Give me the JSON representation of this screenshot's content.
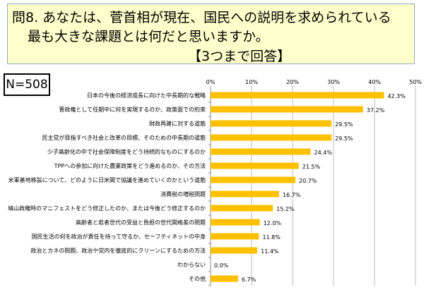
{
  "title": {
    "line1": "問8. あなたは、菅首相が現在、国民への説明を求められている",
    "line2": "最も大きな課題とは何だと思いますか。",
    "line3": "【3つまで回答】"
  },
  "sample_size": "N=508",
  "chart_data": {
    "type": "bar",
    "orientation": "horizontal",
    "categories": [
      "日本の今後の経済成長に向けた中長期的な戦略",
      "菅政権として任期中に何を実現するのか、政策面での約束",
      "財政再建に対する道筋",
      "民主党が目指すべき社会と改革の目標、そのための中長期の道筋",
      "少子高齢化の中で社会保障制度をどう持続的なものにするのか",
      "TPPへの参加に向けた農業政策をどう進めるのか、その方法",
      "米軍基地移設について、どのように日米間で協議を進めていくのかという道筋",
      "消費税の増税問題",
      "鳩山政権時のマニフェストをどう修正したのか、または今後どう修正するのか",
      "高齢者と若者世代の受益と負担の世代間格差の問題",
      "国民生活の何を政治が責任を持って守るか、セーフティネットの中身",
      "政治とカネの問題、政治や党内を徹底的にクリーンにするための方法",
      "わからない",
      "その他"
    ],
    "values": [
      42.3,
      37.2,
      29.5,
      29.5,
      24.4,
      21.5,
      20.7,
      16.7,
      15.2,
      12.0,
      11.8,
      11.4,
      0.0,
      6.7
    ],
    "data_labels": [
      "42.3%",
      "37.2%",
      "29.5%",
      "29.5%",
      "24.4%",
      "21.5%",
      "20.7%",
      "16.7%",
      "15.2%",
      "12.0%",
      "11.8%",
      "11.4%",
      "0.0%",
      "6.7%"
    ],
    "xticks": [
      "0%",
      "10%",
      "20%",
      "30%",
      "40%",
      "50%"
    ],
    "xlim": [
      0,
      50
    ],
    "grid": true,
    "bar_color": "#FFC000"
  }
}
